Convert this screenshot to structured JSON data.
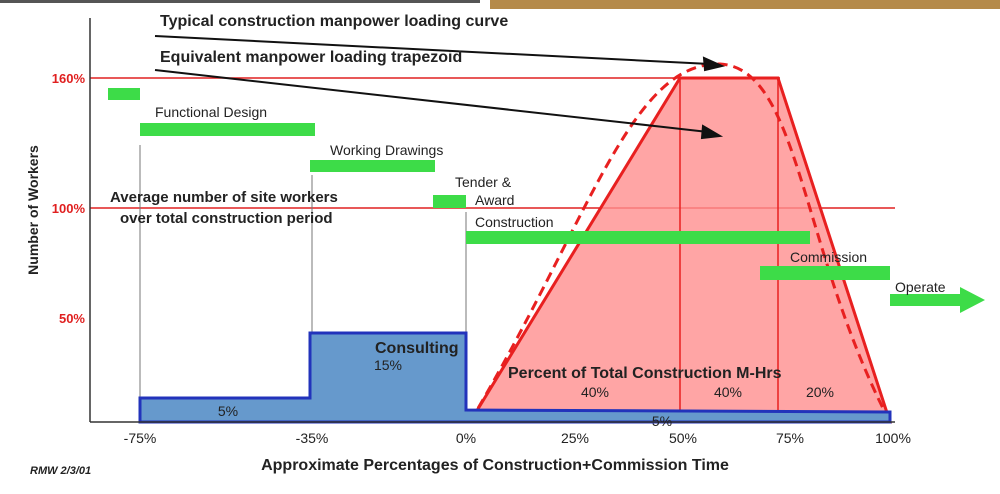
{
  "titles": [
    "Typical construction manpower loading curve",
    "Equivalent manpower loading trapezoid"
  ],
  "y_axis": {
    "label": "Number of Workers",
    "ticks": [
      "160%",
      "100%",
      "50%"
    ]
  },
  "x_axis": {
    "label": "Approximate Percentages of Construction+Commission Time",
    "ticks": [
      "-75%",
      "-35%",
      "0%",
      "25%",
      "50%",
      "75%",
      "100%"
    ]
  },
  "phases": [
    "Functional Design",
    "Working Drawings",
    "Tender &",
    "Award",
    "Construction",
    "Commission",
    "Operate"
  ],
  "average_note": [
    "Average number of site workers",
    "over total construction period"
  ],
  "consulting": {
    "label": "Consulting",
    "shares": [
      "5%",
      "15%",
      "5%"
    ]
  },
  "construction": {
    "label": "Percent of Total Construction M-Hrs",
    "shares": [
      "40%",
      "40%",
      "20%"
    ]
  },
  "signature": "RMW 2/3/01"
}
